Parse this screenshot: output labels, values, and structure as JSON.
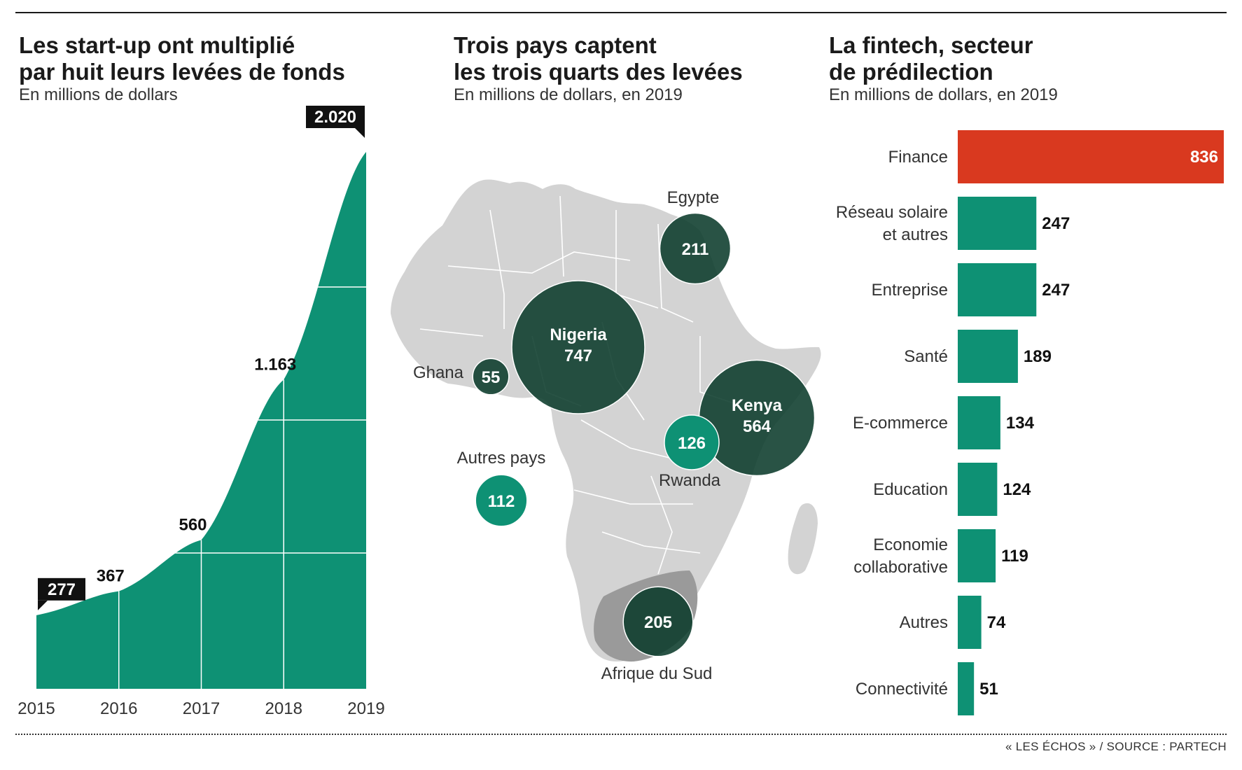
{
  "colors": {
    "teal": "#0e9174",
    "dark": "#0b3b2b",
    "mid": "#0b5e45",
    "red": "#d9391f",
    "map": "#d3d3d3",
    "border": "#ffffff"
  },
  "panel1": {
    "title_line1": "Les start-up ont multiplié",
    "title_line2": "par huit leurs levées de fonds",
    "subtitle": "En millions de dollars"
  },
  "panel2": {
    "title_line1": "Trois pays captent",
    "title_line2": "les trois quarts des levées",
    "subtitle": "En millions de dollars, en 2019"
  },
  "panel3": {
    "title_line1": "La fintech, secteur",
    "title_line2": "de prédilection",
    "subtitle": "En millions de dollars, en 2019"
  },
  "source": "« LES ÉCHOS » / SOURCE : PARTECH",
  "chart_data": [
    {
      "type": "area",
      "x": [
        "2015",
        "2016",
        "2017",
        "2018",
        "2019"
      ],
      "values": [
        277,
        367,
        560,
        1163,
        2020
      ],
      "labels": [
        "277",
        "367",
        "560",
        "1.163",
        "2.020"
      ],
      "highlighted": [
        "2015",
        "2019"
      ],
      "ylim": [
        0,
        2020
      ]
    },
    {
      "type": "scatter",
      "kind": "bubble-map",
      "points": [
        {
          "country": "Nigeria",
          "value": 747,
          "label": "747",
          "tone": "dark"
        },
        {
          "country": "Kenya",
          "value": 564,
          "label": "564",
          "tone": "dark"
        },
        {
          "country": "Egypte",
          "value": 211,
          "label": "211",
          "tone": "dark"
        },
        {
          "country": "Afrique du Sud",
          "value": 205,
          "label": "205",
          "tone": "dark"
        },
        {
          "country": "Rwanda",
          "value": 126,
          "label": "126",
          "tone": "teal"
        },
        {
          "country": "Autres pays",
          "value": 112,
          "label": "112",
          "tone": "teal"
        },
        {
          "country": "Ghana",
          "value": 55,
          "label": "55",
          "tone": "dark"
        }
      ]
    },
    {
      "type": "bar",
      "orientation": "horizontal",
      "categories": [
        [
          "Finance"
        ],
        [
          "Réseau solaire",
          "et autres"
        ],
        [
          "Entreprise"
        ],
        [
          "Santé"
        ],
        [
          "E-commerce"
        ],
        [
          "Education"
        ],
        [
          "Economie",
          "collaborative"
        ],
        [
          "Autres"
        ],
        [
          "Connectivité"
        ]
      ],
      "values": [
        836,
        247,
        247,
        189,
        134,
        124,
        119,
        74,
        51
      ],
      "labels": [
        "836",
        "247",
        "247",
        "189",
        "134",
        "124",
        "119",
        "74",
        "51"
      ],
      "highlighted": "Finance"
    }
  ]
}
